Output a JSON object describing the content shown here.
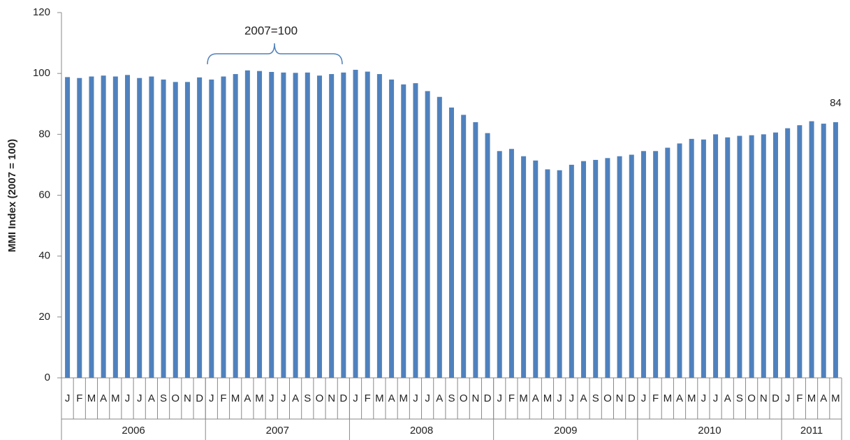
{
  "chart_data": {
    "type": "bar",
    "y_label": "MMI Index (2007 = 100)",
    "annotation": "2007=100",
    "categories": [
      "J",
      "F",
      "M",
      "A",
      "M",
      "J",
      "J",
      "A",
      "S",
      "O",
      "N",
      "D",
      "J",
      "F",
      "M",
      "A",
      "M",
      "J",
      "J",
      "A",
      "S",
      "O",
      "N",
      "D",
      "J",
      "F",
      "M",
      "A",
      "M",
      "J",
      "J",
      "A",
      "S",
      "O",
      "N",
      "D",
      "J",
      "F",
      "M",
      "A",
      "M",
      "J",
      "J",
      "A",
      "S",
      "O",
      "N",
      "D",
      "J",
      "F",
      "M",
      "A",
      "M",
      "J",
      "J",
      "A",
      "S",
      "O",
      "N",
      "D",
      "J",
      "F",
      "M",
      "A",
      "M"
    ],
    "years": [
      "2006",
      "2007",
      "2008",
      "2009",
      "2010",
      "2011"
    ],
    "values": [
      98.8,
      98.5,
      99,
      99.3,
      99,
      99.5,
      98.5,
      99,
      98,
      97.2,
      97.2,
      98.7,
      98,
      99,
      99.8,
      101,
      100.8,
      100.5,
      100.3,
      100.2,
      100.3,
      99.3,
      99.8,
      100.3,
      101.2,
      100.6,
      99.8,
      98,
      96.4,
      96.8,
      94.2,
      92.3,
      88.8,
      86.4,
      84,
      80.4,
      74.5,
      75.2,
      72.8,
      71.4,
      68.5,
      68.2,
      70,
      71.2,
      71.6,
      72.2,
      72.8,
      73.3,
      74.5,
      74.5,
      75.6,
      77,
      78.5,
      78.3,
      80,
      79,
      79.5,
      79.7,
      80,
      80.6,
      82,
      83,
      84.3,
      83.5,
      84
    ],
    "value_labels": [
      null,
      null,
      null,
      null,
      null,
      null,
      null,
      null,
      null,
      null,
      null,
      null,
      null,
      null,
      null,
      null,
      null,
      null,
      null,
      null,
      null,
      null,
      null,
      null,
      null,
      null,
      null,
      null,
      null,
      null,
      null,
      null,
      null,
      null,
      null,
      null,
      null,
      null,
      null,
      null,
      null,
      null,
      null,
      null,
      null,
      null,
      null,
      null,
      null,
      null,
      null,
      null,
      null,
      null,
      null,
      null,
      null,
      null,
      null,
      null,
      null,
      null,
      null,
      null,
      "84"
    ],
    "color": "#4f81bd",
    "ylim": [
      0,
      120
    ],
    "yticks": [
      0,
      20,
      40,
      60,
      80,
      100,
      120
    ],
    "grid": false
  }
}
